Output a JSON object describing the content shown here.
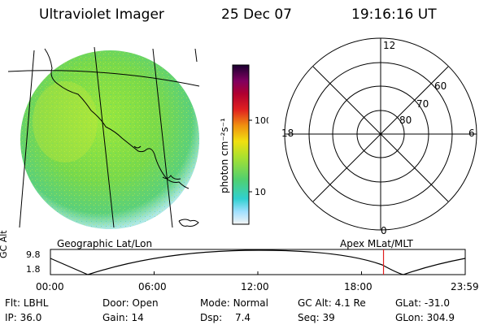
{
  "header": {
    "instrument": "Ultraviolet Imager",
    "date": "25 Dec 07",
    "time": "19:16:16 UT"
  },
  "colorbar": {
    "unit_label": "photon cm⁻²s⁻¹",
    "ticks": [
      "100",
      "10"
    ]
  },
  "polar": {
    "mlt_labels": {
      "top": "12",
      "left": "18",
      "right": "6",
      "bottom": "0"
    },
    "lat_labels": [
      "60",
      "70",
      "80"
    ]
  },
  "labels": {
    "left_panel": "Geographic Lat/Lon",
    "right_panel": "Apex MLat/MLT"
  },
  "altitude_plot": {
    "ylabel": "GC Alt",
    "yticks": [
      "9.8",
      "1.8"
    ],
    "xticks": [
      "00:00",
      "06:00",
      "12:00",
      "18:00",
      "23:59"
    ],
    "current_time_fraction": 0.803
  },
  "status": {
    "row1": [
      {
        "key": "Flt:",
        "value": "LBHL"
      },
      {
        "key": "Door:",
        "value": "Open"
      },
      {
        "key": "Mode:",
        "value": "Normal"
      },
      {
        "key": "GC Alt:",
        "value": "4.1 Re"
      },
      {
        "key": "GLat:",
        "value": "-31.0"
      }
    ],
    "row2": [
      {
        "key": "IP:",
        "value": "36.0"
      },
      {
        "key": "Gain:",
        "value": "14"
      },
      {
        "key": "Dsp:",
        "value": "7.4"
      },
      {
        "key": "Seq:",
        "value": "39"
      },
      {
        "key": "GLon:",
        "value": "304.9"
      }
    ]
  },
  "colors": {
    "imager_green": "#7edc3c",
    "accent_red": "#e02020"
  }
}
